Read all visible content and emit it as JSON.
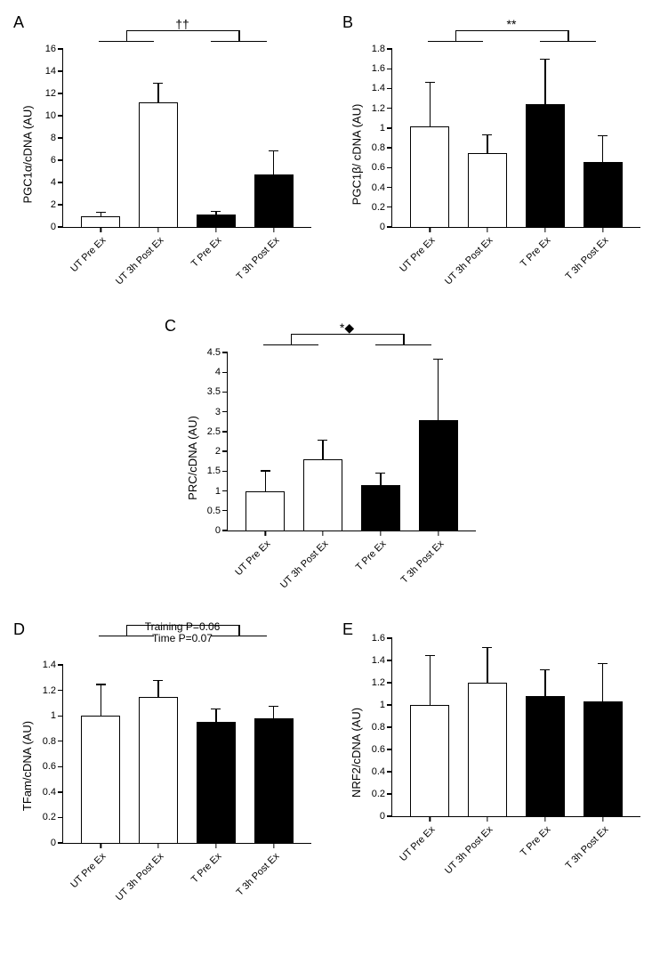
{
  "categories": [
    "UT Pre Ex",
    "UT 3h Post Ex",
    "T Pre Ex",
    "T 3h Post Ex"
  ],
  "bar_fill_pattern": [
    "#ffffff",
    "#ffffff",
    "#000000",
    "#000000"
  ],
  "bar_border": "#000000",
  "background": "#ffffff",
  "axis_color": "#000000",
  "panels": {
    "A": {
      "ylabel": "PGC1α/cDNA (AU)",
      "ymax": 16,
      "ystep": 2,
      "values": [
        1.0,
        11.2,
        1.1,
        4.7
      ],
      "errors": [
        0.35,
        1.8,
        0.35,
        2.2
      ],
      "sig": "††",
      "bracket": {
        "left_pair": [
          0,
          1
        ],
        "right_pair": [
          2,
          3
        ]
      }
    },
    "B": {
      "ylabel": "PGC1β/ cDNA (AU)",
      "ymax": 1.8,
      "ystep": 0.2,
      "values": [
        1.02,
        0.75,
        1.24,
        0.66
      ],
      "errors": [
        0.45,
        0.19,
        0.46,
        0.27
      ],
      "sig": "**",
      "bracket": {
        "left_pair": [
          0,
          1
        ],
        "right_pair": [
          2,
          3
        ]
      }
    },
    "C": {
      "ylabel": "PRC/cDNA (AU)",
      "ymax": 4.5,
      "ystep": 0.5,
      "values": [
        1.0,
        1.8,
        1.15,
        2.8
      ],
      "errors": [
        0.52,
        0.5,
        0.32,
        1.55
      ],
      "sig": "*◆",
      "bracket": {
        "left_pair": [
          0,
          1
        ],
        "right_pair": [
          2,
          3
        ]
      }
    },
    "D": {
      "ylabel": "TFam/cDNA (AU)",
      "ymax": 1.4,
      "ystep": 0.2,
      "values": [
        1.0,
        1.15,
        0.95,
        0.98
      ],
      "errors": [
        0.25,
        0.13,
        0.11,
        0.1
      ],
      "annotation": [
        "Training P=0.06",
        "Time P=0.07"
      ],
      "bracket": {
        "left_pair": [
          0,
          1
        ],
        "right_pair": [
          2,
          3
        ]
      }
    },
    "E": {
      "ylabel": "NRF2/cDNA (AU)",
      "ymax": 1.6,
      "ystep": 0.2,
      "values": [
        1.0,
        1.2,
        1.08,
        1.03
      ],
      "errors": [
        0.45,
        0.32,
        0.24,
        0.35
      ]
    }
  },
  "layout": [
    "A",
    "B",
    "C",
    "D",
    "E"
  ],
  "label_fontsize": 13,
  "tick_fontsize": 11,
  "panel_label_fontsize": 18
}
